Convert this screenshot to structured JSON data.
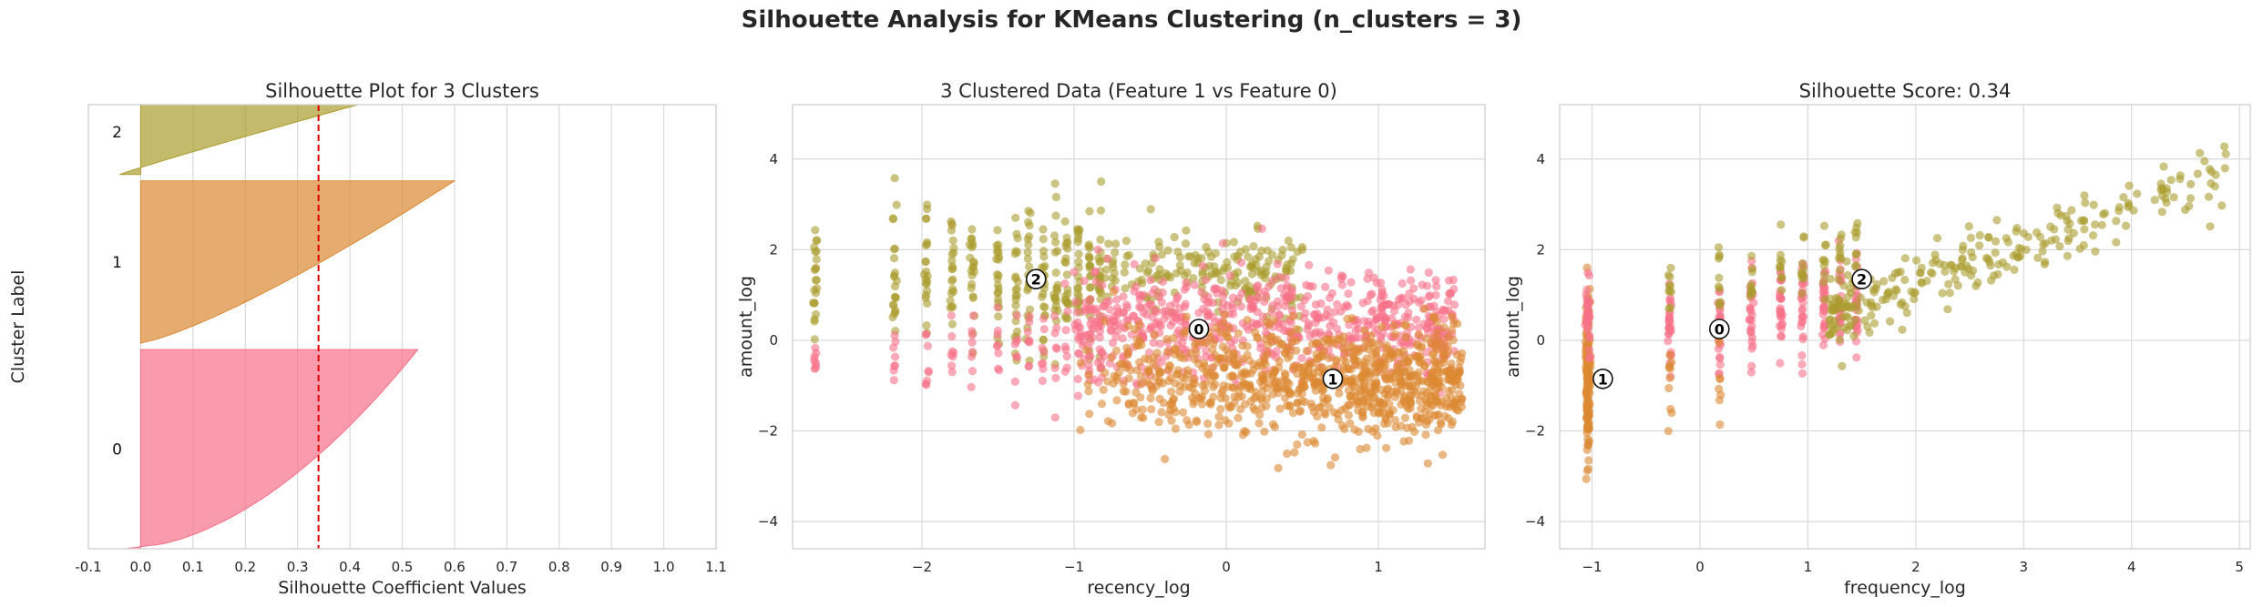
{
  "suptitle": "Silhouette Analysis for KMeans Clustering (n_clusters = 3)",
  "colors": {
    "cluster_0": "#f77189",
    "cluster_1": "#dc8932",
    "cluster_2": "#aa9d2e",
    "avg_line": "#e00000",
    "grid": "#d9d9d9",
    "frame": "#cfcfcf"
  },
  "chart_data": [
    {
      "type": "area",
      "title": "Silhouette Plot for 3 Clusters",
      "xlabel": "Silhouette Coefficient Values",
      "ylabel": "Cluster Label",
      "xlim": [
        -0.1,
        1.1
      ],
      "xticks": [
        -0.1,
        0.0,
        0.1,
        0.2,
        0.3,
        0.4,
        0.5,
        0.6,
        0.7,
        0.8,
        0.9,
        1.0,
        1.1
      ],
      "xtick_labels": [
        "-0.1",
        "0.0",
        "0.1",
        "0.2",
        "0.3",
        "0.4",
        "0.5",
        "0.6",
        "0.7",
        "0.8",
        "0.9",
        "1.0",
        "1.1"
      ],
      "grid": "vertical",
      "average_silhouette": 0.34,
      "clusters": [
        {
          "label": "0",
          "start": 0,
          "end": 1570,
          "max_value": 0.53,
          "min_value": -0.03
        },
        {
          "label": "1",
          "start": 1620,
          "end": 2900,
          "max_value": 0.6,
          "min_value": 0.0
        },
        {
          "label": "2",
          "start": 2950,
          "end": 3620,
          "max_value": 0.52,
          "min_value": -0.04
        }
      ],
      "ylim": [
        0,
        3500
      ]
    },
    {
      "type": "scatter",
      "title": "3 Clustered Data (Feature 1 vs Feature 0)",
      "xlabel": "recency_log",
      "ylabel": "amount_log",
      "xlim": [
        -2.85,
        1.7
      ],
      "ylim": [
        -4.6,
        5.2
      ],
      "xticks": [
        -2,
        -1,
        0,
        1
      ],
      "xtick_labels": [
        "−2",
        "−1",
        "0",
        "1"
      ],
      "yticks": [
        -4,
        -2,
        0,
        2,
        4
      ],
      "ytick_labels": [
        "−4",
        "−2",
        "0",
        "2",
        "4"
      ],
      "grid": "both",
      "centers": [
        {
          "label": "0",
          "x": -0.18,
          "y": 0.25
        },
        {
          "label": "1",
          "x": 0.7,
          "y": -0.85
        },
        {
          "label": "2",
          "x": -1.25,
          "y": 1.35
        }
      ]
    },
    {
      "type": "scatter",
      "title": "Silhouette Score: 0.34",
      "xlabel": "frequency_log",
      "ylabel": "amount_log",
      "xlim": [
        -1.3,
        5.1
      ],
      "ylim": [
        -4.6,
        5.2
      ],
      "xticks": [
        -1,
        0,
        1,
        2,
        3,
        4,
        5
      ],
      "xtick_labels": [
        "−1",
        "0",
        "1",
        "2",
        "3",
        "4",
        "5"
      ],
      "yticks": [
        -4,
        -2,
        0,
        2,
        4
      ],
      "ytick_labels": [
        "−4",
        "−2",
        "0",
        "2",
        "4"
      ],
      "grid": "both",
      "centers": [
        {
          "label": "0",
          "x": 0.18,
          "y": 0.25
        },
        {
          "label": "1",
          "x": -0.9,
          "y": -0.85
        },
        {
          "label": "2",
          "x": 1.5,
          "y": 1.35
        }
      ]
    }
  ]
}
